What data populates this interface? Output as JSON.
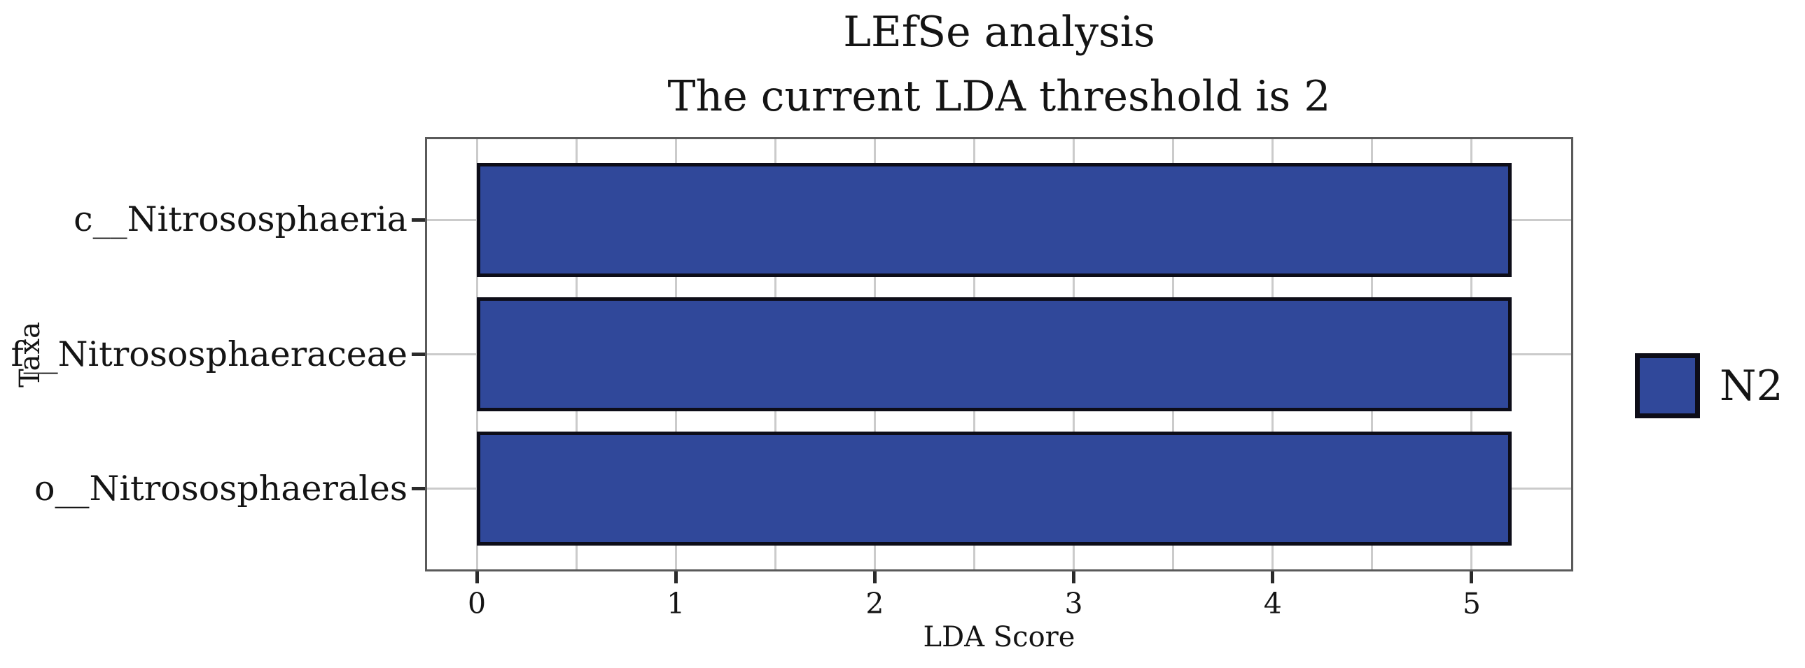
{
  "chart_data": {
    "type": "bar",
    "orientation": "horizontal",
    "title": "LEfSe analysis",
    "subtitle": "The current LDA threshold is 2",
    "xlabel": "LDA Score",
    "ylabel": "Taxa",
    "categories": [
      "c__Nitrososphaeria",
      "f__Nitrososphaeraceae",
      "o__Nitrososphaerales"
    ],
    "series": [
      {
        "name": "N2",
        "color": "#30489a",
        "values": [
          5.2,
          5.2,
          5.2
        ]
      }
    ],
    "xlim": [
      -0.25,
      5.5
    ],
    "ylim": [
      -0.6,
      2.6
    ],
    "xticks": [
      0,
      1,
      2,
      3,
      4,
      5
    ],
    "bar_height_frac": 0.85,
    "grid": {
      "x_step": 0.5,
      "horizontal_at_y_ticks": true,
      "on": true
    },
    "legend": {
      "label": "N2",
      "position": "right-outside"
    }
  },
  "colors": {
    "background": "#ffffff",
    "bar_fill": "#30489a",
    "bar_edge": "#0d0d18",
    "grid": "#cbcbcb",
    "frame": "#5a5a5a",
    "tick": "#2a2a2a",
    "text": "#141414"
  }
}
